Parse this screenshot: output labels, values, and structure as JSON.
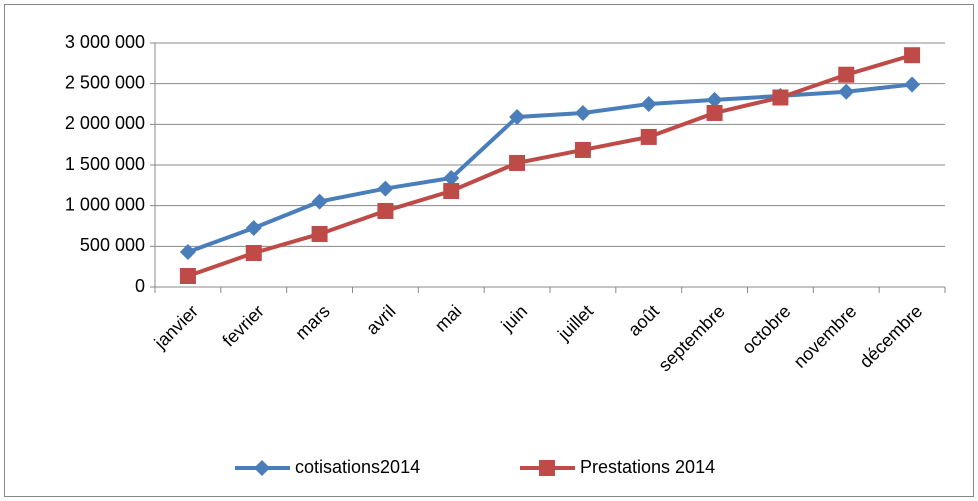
{
  "chart_data": {
    "type": "line",
    "categories": [
      "janvier",
      "fevrier",
      "mars",
      "avril",
      "mai",
      "juin",
      "juillet",
      "août",
      "septembre",
      "octobre",
      "novembre",
      "décembre"
    ],
    "series": [
      {
        "name": "cotisations2014",
        "color": "#4a7ebb",
        "values": [
          430000,
          725000,
          1050000,
          1210000,
          1340000,
          2090000,
          2140000,
          2250000,
          2300000,
          2350000,
          2400000,
          2490000
        ]
      },
      {
        "name": "Prestations 2014",
        "color": "#be4b48",
        "values": [
          135000,
          418000,
          652000,
          935000,
          1180000,
          1525000,
          1685000,
          1845000,
          2140000,
          2330000,
          2610000,
          2850000
        ]
      }
    ],
    "ylim": [
      0,
      3000000
    ],
    "yticks": [
      0,
      {
        "value": 500000,
        "label": "500 000"
      },
      {
        "value": 1000000,
        "label": "1 000 000"
      },
      {
        "value": 1500000,
        "label": "1 500 000"
      },
      {
        "value": 2000000,
        "label": "2 000 000"
      },
      {
        "value": 2500000,
        "label": "2 500 000"
      },
      {
        "value": 3000000,
        "label": "3 000 000"
      }
    ],
    "grid": true,
    "legend": "bottom"
  }
}
